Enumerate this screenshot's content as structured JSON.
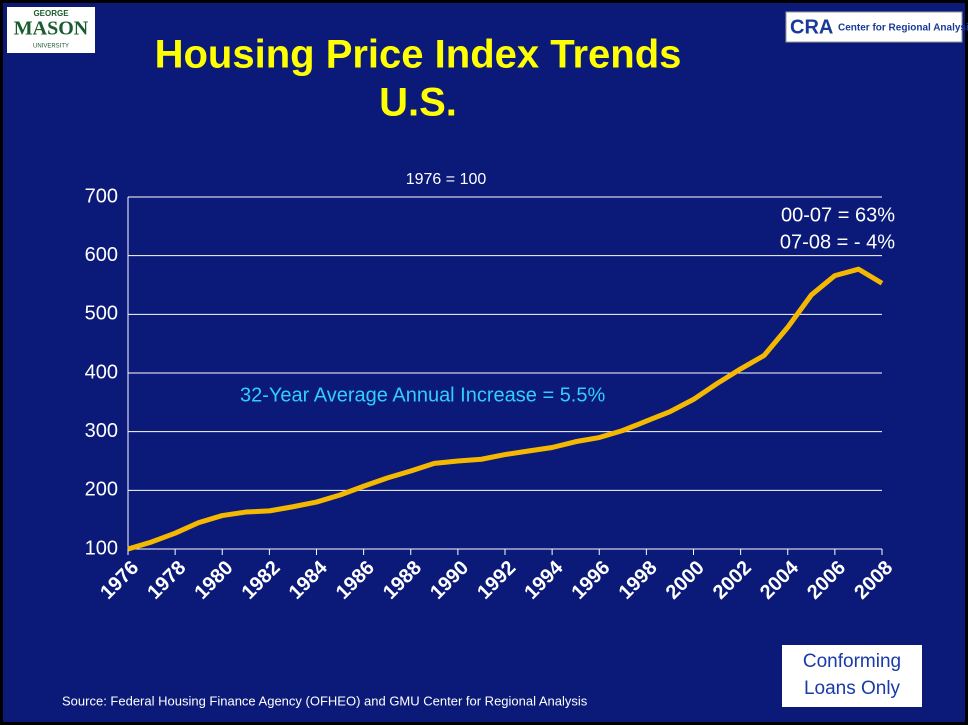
{
  "logos": {
    "left": [
      "GEORGE",
      "MASON",
      "UNIVERSITY"
    ],
    "right": [
      "CRA",
      "Center for Regional Analysis"
    ]
  },
  "chart_data": {
    "type": "line",
    "title": [
      "Housing Price Index Trends",
      "U.S."
    ],
    "subtitle": "1976 = 100",
    "annotations": {
      "growth": [
        "00-07 = 63%",
        "07-08 = - 4%"
      ],
      "average": "32-Year Average Annual Increase = 5.5%",
      "note": [
        "Conforming",
        "Loans Only"
      ]
    },
    "source": "Source: Federal Housing Finance Agency (OFHEO) and GMU Center for Regional Analysis",
    "x": [
      1976,
      1977,
      1978,
      1979,
      1980,
      1981,
      1982,
      1983,
      1984,
      1985,
      1986,
      1987,
      1988,
      1989,
      1990,
      1991,
      1992,
      1993,
      1994,
      1995,
      1996,
      1997,
      1998,
      1999,
      2000,
      2001,
      2002,
      2003,
      2004,
      2005,
      2006,
      2007,
      2008
    ],
    "values": [
      100,
      112,
      127,
      145,
      157,
      163,
      165,
      172,
      180,
      192,
      207,
      221,
      233,
      246,
      250,
      253,
      261,
      267,
      273,
      283,
      290,
      302,
      318,
      334,
      355,
      382,
      407,
      430,
      478,
      533,
      566,
      577,
      553
    ],
    "color": "#f5b800",
    "xlim": [
      1976,
      2008
    ],
    "xticks": [
      1976,
      1978,
      1980,
      1982,
      1984,
      1986,
      1988,
      1990,
      1992,
      1994,
      1996,
      1998,
      2000,
      2002,
      2004,
      2006,
      2008
    ],
    "ylim": [
      100,
      700
    ],
    "yticks": [
      100,
      200,
      300,
      400,
      500,
      600,
      700
    ],
    "grid": true
  }
}
